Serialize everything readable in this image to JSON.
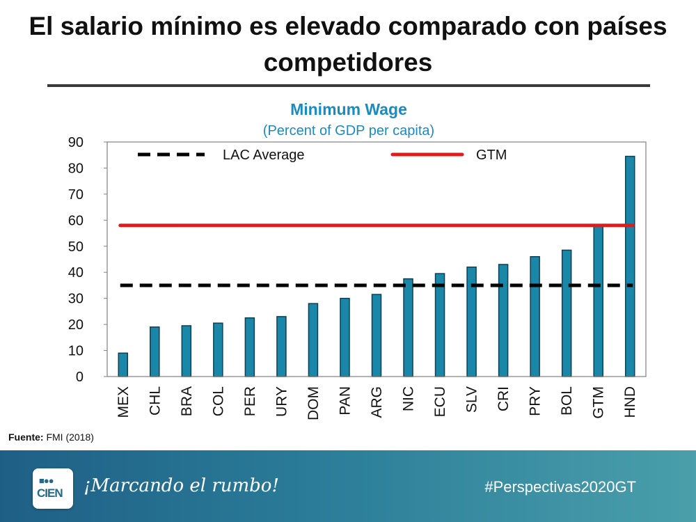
{
  "slide": {
    "title_line1": "El salario mínimo es elevado comparado con países",
    "title_line2": "competidores"
  },
  "source": {
    "label": "Fuente:",
    "text": " FMI (2018)"
  },
  "footer": {
    "logo_top": "■●●",
    "logo_bottom": "CIEN",
    "slogan": "¡Marcando el rumbo!",
    "hashtag": "#Perspectivas2020GT"
  },
  "colors": {
    "bar": "#1a86a8",
    "bar_edge": "#0d3f55",
    "lac_line": "#000000",
    "gtm_line": "#e01b1b",
    "title_blue": "#1a8bc0"
  },
  "chart_data": {
    "type": "bar",
    "title": "Minimum Wage",
    "subtitle": "(Percent of GDP per capita)",
    "xlabel": "",
    "ylabel": "",
    "ylim": [
      0,
      90
    ],
    "yticks": [
      0,
      10,
      20,
      30,
      40,
      50,
      60,
      70,
      80,
      90
    ],
    "categories": [
      "MEX",
      "CHL",
      "BRA",
      "COL",
      "PER",
      "URY",
      "DOM",
      "PAN",
      "ARG",
      "NIC",
      "ECU",
      "SLV",
      "CRI",
      "PRY",
      "BOL",
      "GTM",
      "HND"
    ],
    "values": [
      9,
      19,
      19.5,
      20.5,
      22.5,
      23,
      28,
      30,
      31.5,
      37.5,
      39.5,
      42,
      43,
      46,
      48.5,
      58,
      84.5
    ],
    "reference_lines": [
      {
        "name": "LAC Average",
        "value": 35,
        "style": "dashed"
      },
      {
        "name": "GTM",
        "value": 58,
        "style": "solid"
      }
    ],
    "legend": [
      "LAC Average",
      "GTM"
    ]
  }
}
